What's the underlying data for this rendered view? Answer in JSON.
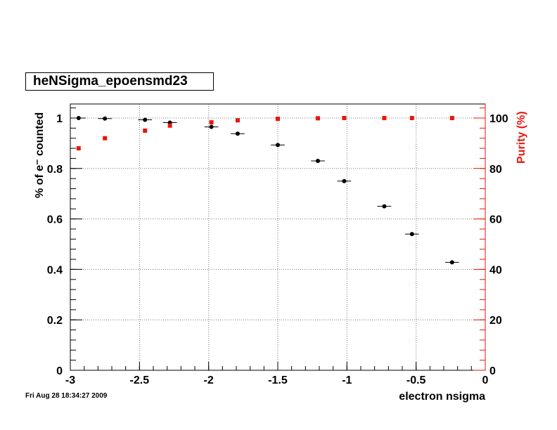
{
  "title": "heNSigma_epoensmd23",
  "timestamp": "Fri Aug 28 18:34:27 2009",
  "chart_data": {
    "type": "scatter",
    "xlabel": "electron nsigma",
    "ylabel": "% of e⁻ counted",
    "ylabel_right": "Purity (%)",
    "xlim": [
      -3,
      0
    ],
    "ylim": [
      0,
      1.0
    ],
    "ylim_right": [
      0,
      100
    ],
    "grid": true,
    "x_ticks": [
      "-3",
      "-2.5",
      "-2",
      "-1.5",
      "-1",
      "-0.5",
      "0"
    ],
    "y_ticks": [
      "0",
      "0.2",
      "0.4",
      "0.6",
      "0.8",
      "1"
    ],
    "y_ticks_right": [
      "0",
      "20",
      "40",
      "60",
      "80",
      "100"
    ],
    "colors": {
      "efficiency": "#000000",
      "purity": "#e8160c",
      "grid": "#777777"
    },
    "series": [
      {
        "axis": "left",
        "marker": "circle",
        "x": [
          -2.94,
          -2.75,
          -2.46,
          -2.28,
          -1.98,
          -1.79,
          -1.5,
          -1.21,
          -1.02,
          -0.73,
          -0.53,
          -0.24
        ],
        "y": [
          1.0,
          0.998,
          0.993,
          0.982,
          0.965,
          0.938,
          0.893,
          0.83,
          0.75,
          0.65,
          0.54,
          0.428
        ],
        "xerr": [
          0.05,
          0.05,
          0.05,
          0.05,
          0.05,
          0.05,
          0.05,
          0.05,
          0.05,
          0.05,
          0.05,
          0.05
        ]
      },
      {
        "axis": "right",
        "marker": "square",
        "x": [
          -2.94,
          -2.75,
          -2.46,
          -2.28,
          -1.98,
          -1.79,
          -1.5,
          -1.21,
          -1.02,
          -0.73,
          -0.53,
          -0.24
        ],
        "y": [
          88,
          92,
          95,
          97,
          98.3,
          99.1,
          99.7,
          99.9,
          100,
          100,
          100,
          100
        ]
      }
    ]
  }
}
